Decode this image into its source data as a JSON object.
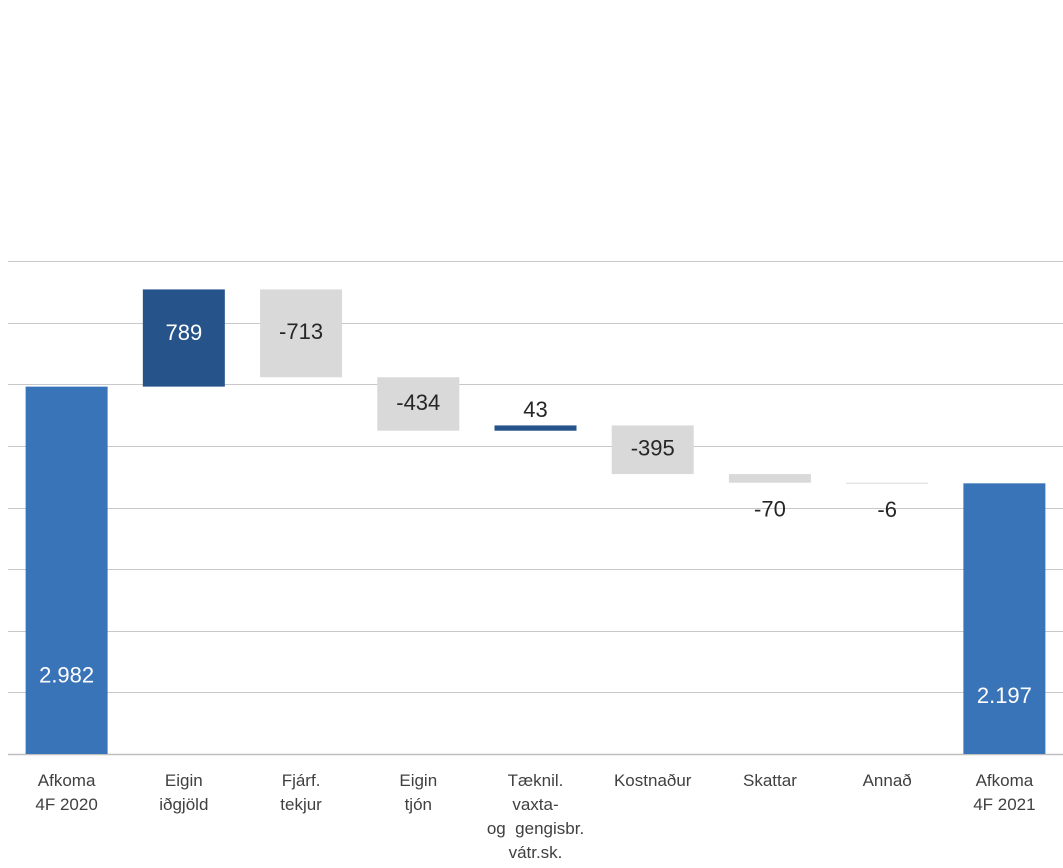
{
  "chart_data": {
    "type": "bar",
    "subtype": "waterfall",
    "title": "",
    "xlabel": "",
    "ylabel": "",
    "ylim": [
      0,
      4000
    ],
    "grid": true,
    "legend": "none",
    "categories": [
      [
        "Afkoma",
        "4F 2020"
      ],
      [
        "Eigin",
        "iðgjöld"
      ],
      [
        "Fjárf.",
        "tekjur"
      ],
      [
        "Eigin",
        "tjón"
      ],
      [
        "Tæknil.",
        "vaxta-",
        "og  gengisbr.",
        "vátr.sk."
      ],
      [
        "Kostnaður"
      ],
      [
        "Skattar"
      ],
      [
        "Annað"
      ],
      [
        "Afkoma",
        "4F 2021"
      ]
    ],
    "bars": [
      {
        "kind": "total",
        "start": 0,
        "end": 2982,
        "label": "2.982"
      },
      {
        "kind": "increase",
        "start": 2982,
        "end": 3771,
        "label": "789"
      },
      {
        "kind": "decrease",
        "start": 3771,
        "end": 3058,
        "label": "-713"
      },
      {
        "kind": "decrease",
        "start": 3058,
        "end": 2624,
        "label": "-434"
      },
      {
        "kind": "increase",
        "start": 2624,
        "end": 2667,
        "label": "43"
      },
      {
        "kind": "decrease",
        "start": 2667,
        "end": 2272,
        "label": "-395"
      },
      {
        "kind": "decrease",
        "start": 2272,
        "end": 2202,
        "label": "-70"
      },
      {
        "kind": "decrease",
        "start": 2202,
        "end": 2197,
        "label": "-6"
      },
      {
        "kind": "total",
        "start": 0,
        "end": 2197,
        "label": "2.197"
      }
    ],
    "colors": {
      "total": "#3a74b8",
      "increase": "#25538a",
      "decrease": "#d9d9d9",
      "label_on_dark": "#ffffff",
      "label_on_light": "#262626",
      "grid": "#c8c8c8",
      "axis": "#bfbfbf"
    }
  }
}
